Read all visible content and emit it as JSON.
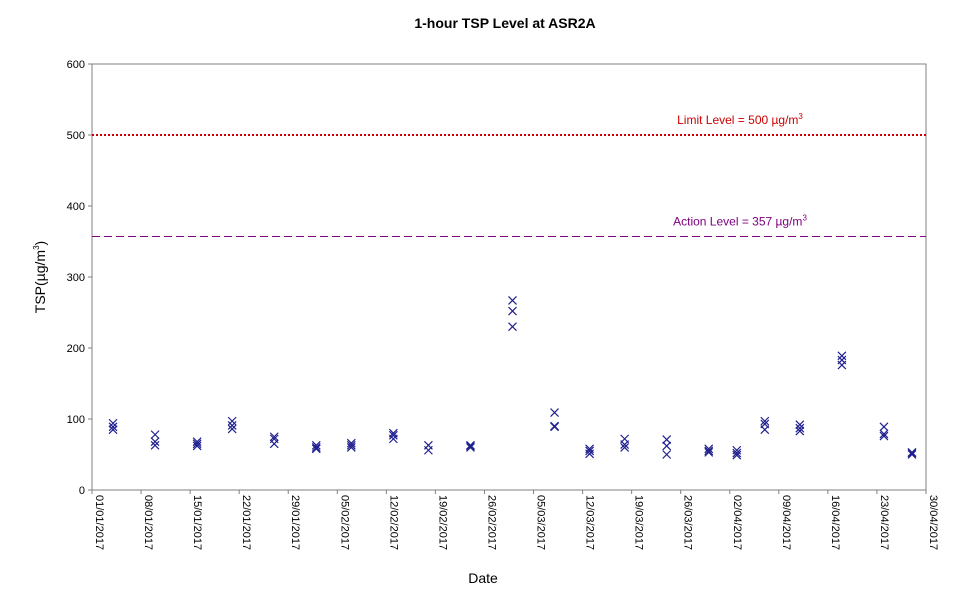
{
  "chart_data": {
    "type": "scatter",
    "title": "1-hour TSP Level at ASR2A",
    "xlabel": "Date",
    "ylabel": {
      "text": "TSP(µg/m",
      "sup": "3",
      "tail": ")"
    },
    "xlim": [
      "2017-01-01",
      "2017-04-30"
    ],
    "ylim": [
      0,
      600
    ],
    "y_ticks": [
      0,
      100,
      200,
      300,
      400,
      500,
      600
    ],
    "x_ticks": [
      "01/01/2017",
      "08/01/2017",
      "15/01/2017",
      "22/01/2017",
      "29/01/2017",
      "05/02/2017",
      "12/02/2017",
      "19/02/2017",
      "26/02/2017",
      "05/03/2017",
      "12/03/2017",
      "19/03/2017",
      "26/03/2017",
      "02/04/2017",
      "09/04/2017",
      "16/04/2017",
      "23/04/2017",
      "30/04/2017"
    ],
    "grid": false,
    "marker_color": "#1f1f8f",
    "reference_lines": [
      {
        "key": "limit",
        "value": 500,
        "label": {
          "text": "Limit Level = 500 µg/m",
          "sup": "3"
        },
        "color": "#cc0000",
        "style": "dotted"
      },
      {
        "key": "action",
        "value": 357,
        "label": {
          "text": "Action Level = 357 µg/m",
          "sup": "3"
        },
        "color": "#800080",
        "style": "dashed"
      }
    ],
    "points": [
      {
        "x": "2017-01-04",
        "y": 85
      },
      {
        "x": "2017-01-04",
        "y": 89
      },
      {
        "x": "2017-01-04",
        "y": 94
      },
      {
        "x": "2017-01-10",
        "y": 63
      },
      {
        "x": "2017-01-10",
        "y": 68
      },
      {
        "x": "2017-01-10",
        "y": 78
      },
      {
        "x": "2017-01-16",
        "y": 62
      },
      {
        "x": "2017-01-16",
        "y": 65
      },
      {
        "x": "2017-01-16",
        "y": 68
      },
      {
        "x": "2017-01-21",
        "y": 86
      },
      {
        "x": "2017-01-21",
        "y": 91
      },
      {
        "x": "2017-01-21",
        "y": 97
      },
      {
        "x": "2017-01-27",
        "y": 65
      },
      {
        "x": "2017-01-27",
        "y": 72
      },
      {
        "x": "2017-01-27",
        "y": 75
      },
      {
        "x": "2017-02-02",
        "y": 58
      },
      {
        "x": "2017-02-02",
        "y": 60
      },
      {
        "x": "2017-02-02",
        "y": 63
      },
      {
        "x": "2017-02-07",
        "y": 60
      },
      {
        "x": "2017-02-07",
        "y": 63
      },
      {
        "x": "2017-02-07",
        "y": 66
      },
      {
        "x": "2017-02-13",
        "y": 72
      },
      {
        "x": "2017-02-13",
        "y": 77
      },
      {
        "x": "2017-02-13",
        "y": 80
      },
      {
        "x": "2017-02-18",
        "y": 56
      },
      {
        "x": "2017-02-18",
        "y": 63
      },
      {
        "x": "2017-02-24",
        "y": 60
      },
      {
        "x": "2017-02-24",
        "y": 62
      },
      {
        "x": "2017-02-24",
        "y": 63
      },
      {
        "x": "2017-03-02",
        "y": 230
      },
      {
        "x": "2017-03-02",
        "y": 252
      },
      {
        "x": "2017-03-02",
        "y": 267
      },
      {
        "x": "2017-03-08",
        "y": 89
      },
      {
        "x": "2017-03-08",
        "y": 90
      },
      {
        "x": "2017-03-08",
        "y": 109
      },
      {
        "x": "2017-03-13",
        "y": 51
      },
      {
        "x": "2017-03-13",
        "y": 55
      },
      {
        "x": "2017-03-13",
        "y": 58
      },
      {
        "x": "2017-03-18",
        "y": 60
      },
      {
        "x": "2017-03-18",
        "y": 64
      },
      {
        "x": "2017-03-18",
        "y": 72
      },
      {
        "x": "2017-03-24",
        "y": 50
      },
      {
        "x": "2017-03-24",
        "y": 62
      },
      {
        "x": "2017-03-24",
        "y": 71
      },
      {
        "x": "2017-03-30",
        "y": 53
      },
      {
        "x": "2017-03-30",
        "y": 55
      },
      {
        "x": "2017-03-30",
        "y": 58
      },
      {
        "x": "2017-04-03",
        "y": 49
      },
      {
        "x": "2017-04-03",
        "y": 52
      },
      {
        "x": "2017-04-03",
        "y": 56
      },
      {
        "x": "2017-04-07",
        "y": 85
      },
      {
        "x": "2017-04-07",
        "y": 93
      },
      {
        "x": "2017-04-07",
        "y": 97
      },
      {
        "x": "2017-04-12",
        "y": 83
      },
      {
        "x": "2017-04-12",
        "y": 87
      },
      {
        "x": "2017-04-12",
        "y": 92
      },
      {
        "x": "2017-04-18",
        "y": 176
      },
      {
        "x": "2017-04-18",
        "y": 183
      },
      {
        "x": "2017-04-18",
        "y": 189
      },
      {
        "x": "2017-04-24",
        "y": 76
      },
      {
        "x": "2017-04-24",
        "y": 79
      },
      {
        "x": "2017-04-24",
        "y": 89
      },
      {
        "x": "2017-04-28",
        "y": 50
      },
      {
        "x": "2017-04-28",
        "y": 52
      },
      {
        "x": "2017-04-28",
        "y": 53
      }
    ]
  }
}
